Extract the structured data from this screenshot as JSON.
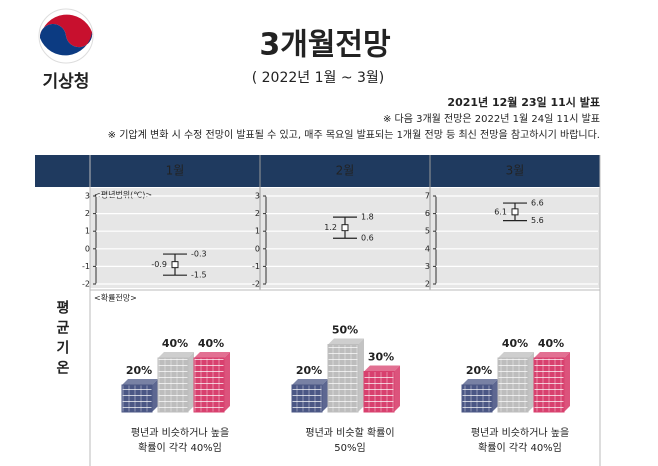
{
  "header": {
    "agency": "기상청",
    "title": "3개월전망",
    "period": "( 2022년 1월 ~ 3월)",
    "issued": "2021년 12월 23일 11시 발표",
    "notes": [
      "※ 다음 3개월 전망은 2022년 1월 24일 11시 발표",
      "※ 기압계 변화 시 수정 전망이 발표될 수 있고, 매주 목요일 발표되는 1개월 전망 등 최신 전망을 참고하시기 바랍니다."
    ]
  },
  "row_label": "평균기온",
  "range_label": "<평년범위(℃)>",
  "prob_label": "<확률전망>",
  "colors": [
    "#4b5785",
    "#bdbdbd",
    "#d8406e"
  ],
  "months": [
    {
      "name": "1월",
      "range": {
        "type": "range",
        "ylim": [
          -2,
          3
        ],
        "yticks": [
          -2,
          -1,
          0,
          1,
          2,
          3
        ],
        "low": -1.5,
        "mid": -0.9,
        "high": -0.3
      },
      "probability": {
        "type": "bar",
        "values": [
          20,
          40,
          40
        ],
        "value_labels": [
          "20%",
          "40%",
          "40%"
        ]
      },
      "caption": [
        "평년과 비슷하거나 높을",
        "확률이 각각 40%임"
      ]
    },
    {
      "name": "2월",
      "range": {
        "type": "range",
        "ylim": [
          -2,
          3
        ],
        "yticks": [
          -2,
          -1,
          0,
          1,
          2,
          3
        ],
        "low": 0.6,
        "mid": 1.2,
        "high": 1.8
      },
      "probability": {
        "type": "bar",
        "values": [
          20,
          50,
          30
        ],
        "value_labels": [
          "20%",
          "50%",
          "30%"
        ]
      },
      "caption": [
        "평년과 비슷할 확률이",
        "50%임"
      ]
    },
    {
      "name": "3월",
      "range": {
        "type": "range",
        "ylim": [
          2,
          7
        ],
        "yticks": [
          2,
          3,
          4,
          5,
          6,
          7
        ],
        "low": 5.6,
        "mid": 6.1,
        "high": 6.6
      },
      "probability": {
        "type": "bar",
        "values": [
          20,
          40,
          40
        ],
        "value_labels": [
          "20%",
          "40%",
          "40%"
        ]
      },
      "caption": [
        "평년과 비슷하거나 높을",
        "확률이 각각 40%임"
      ]
    }
  ]
}
